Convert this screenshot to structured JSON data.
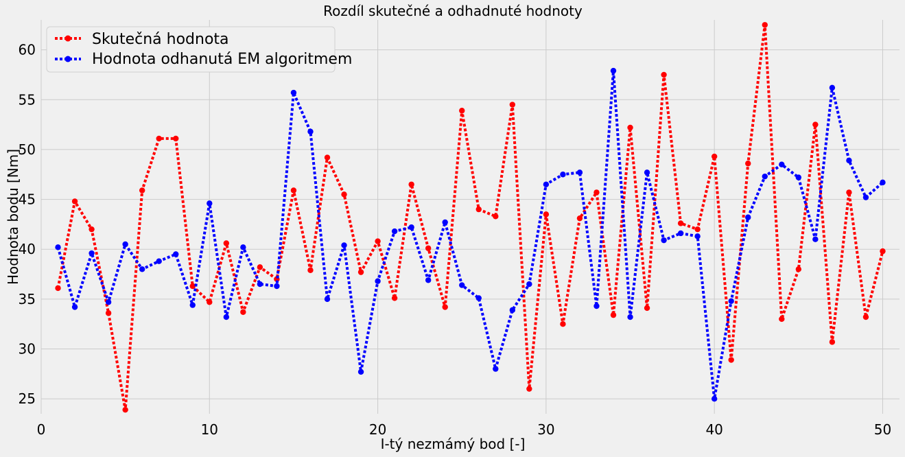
{
  "chart_data": {
    "type": "line",
    "title": "Rozdíl skutečné a odhadnuté hodnoty",
    "xlabel": "I-tý nezmámý bod [-]",
    "ylabel": "Hodnota bodu [Nm]",
    "xlim": [
      0,
      51
    ],
    "ylim": [
      23.5,
      63
    ],
    "xticks": [
      0,
      10,
      20,
      30,
      40,
      50
    ],
    "yticks": [
      25,
      30,
      35,
      40,
      45,
      50,
      55,
      60
    ],
    "grid": true,
    "legend_position": "top-left",
    "x": [
      1,
      2,
      3,
      4,
      5,
      6,
      7,
      8,
      9,
      10,
      11,
      12,
      13,
      14,
      15,
      16,
      17,
      18,
      19,
      20,
      21,
      22,
      23,
      24,
      25,
      26,
      27,
      28,
      29,
      30,
      31,
      32,
      33,
      34,
      35,
      36,
      37,
      38,
      39,
      40,
      41,
      42,
      43,
      44,
      45,
      46,
      47,
      48,
      49,
      50
    ],
    "series": [
      {
        "name": "Skutečná hodnota",
        "color": "#ff0000",
        "values": [
          36.1,
          44.8,
          42.0,
          33.6,
          23.9,
          45.9,
          51.1,
          51.1,
          36.3,
          34.7,
          40.6,
          33.7,
          38.2,
          37.0,
          45.9,
          37.9,
          49.2,
          45.5,
          37.7,
          40.8,
          35.1,
          46.5,
          40.1,
          34.2,
          53.9,
          44.0,
          43.3,
          54.5,
          26.0,
          43.5,
          32.5,
          43.1,
          45.7,
          33.4,
          52.2,
          34.1,
          57.5,
          42.6,
          42.0,
          49.3,
          28.9,
          48.6,
          62.5,
          33.0,
          38.0,
          52.5,
          30.7,
          45.7,
          33.2,
          39.8
        ]
      },
      {
        "name": "Hodnota odhanutá EM algoritmem",
        "color": "#0000ff",
        "values": [
          40.2,
          34.2,
          39.6,
          34.7,
          40.5,
          38.0,
          38.8,
          39.5,
          34.4,
          44.6,
          33.2,
          40.2,
          36.5,
          36.3,
          55.7,
          51.8,
          35.0,
          40.4,
          27.7,
          36.8,
          41.8,
          42.2,
          36.9,
          42.7,
          36.4,
          35.1,
          28.0,
          33.9,
          36.5,
          46.5,
          47.5,
          47.7,
          34.3,
          57.9,
          33.2,
          47.7,
          40.9,
          41.6,
          41.3,
          25.0,
          34.8,
          43.2,
          47.3,
          48.5,
          47.2,
          41.0,
          56.2,
          48.9,
          45.2,
          46.7
        ]
      }
    ]
  }
}
